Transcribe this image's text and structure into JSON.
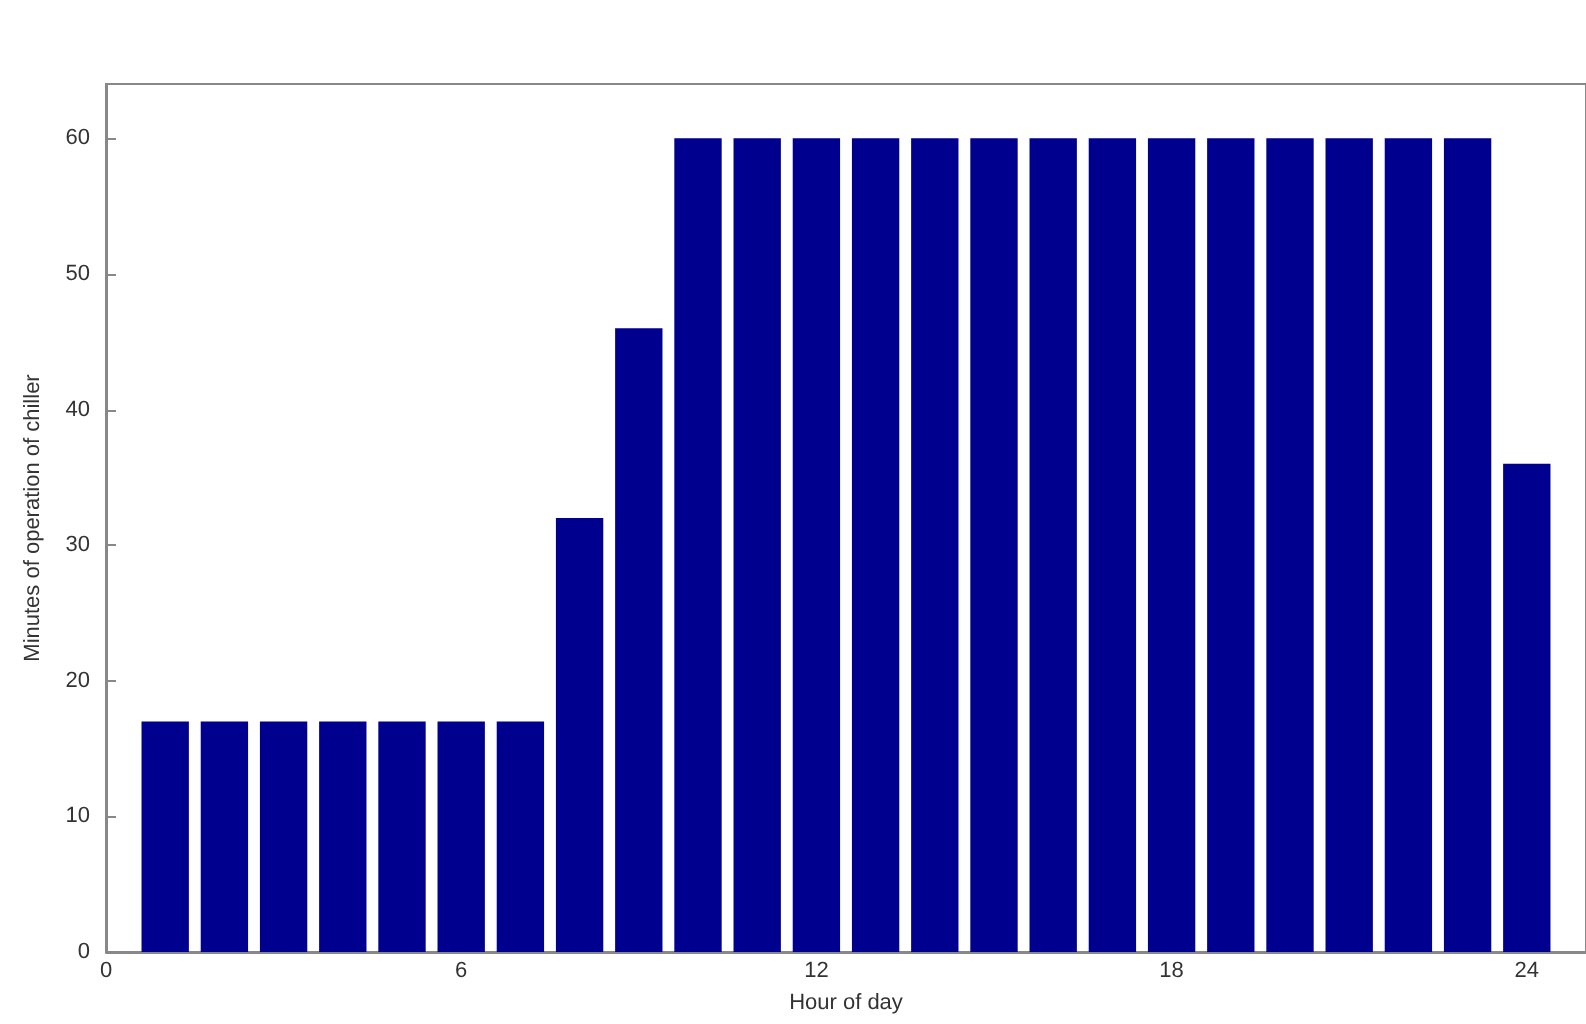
{
  "chart_data": {
    "type": "bar",
    "xlabel": "Hour of day",
    "ylabel": "Minutes of operation of chiller",
    "x": [
      1,
      2,
      3,
      4,
      5,
      6,
      7,
      8,
      9,
      10,
      11,
      12,
      13,
      14,
      15,
      16,
      17,
      18,
      19,
      20,
      21,
      22,
      23,
      24
    ],
    "values": [
      17,
      17,
      17,
      17,
      17,
      17,
      17,
      32,
      46,
      60,
      60,
      60,
      60,
      60,
      60,
      60,
      60,
      60,
      60,
      60,
      60,
      60,
      60,
      36
    ],
    "color": "#00008f",
    "xlim": [
      0,
      25
    ],
    "xticks": [
      0,
      6,
      12,
      18,
      24
    ],
    "ylim": [
      0,
      64
    ],
    "yticks": [
      0,
      10,
      20,
      30,
      40,
      50,
      60
    ],
    "grid": false
  }
}
